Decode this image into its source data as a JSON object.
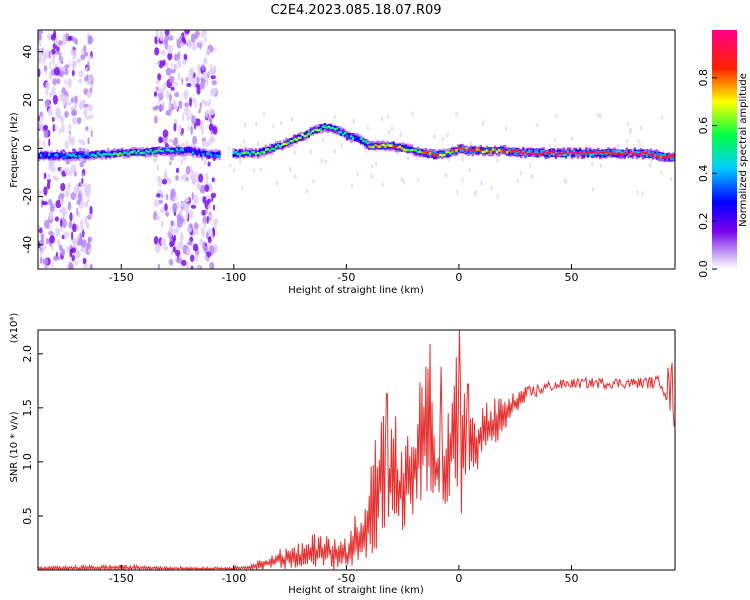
{
  "title": "C2E4.2023.085.18.07.R09",
  "colors": {
    "line": "#e53030",
    "background": "#ffffff",
    "spectrum_scale": [
      "#ffffff",
      "#7700ee",
      "#0000ff",
      "#00ccff",
      "#00ff44",
      "#ffff00",
      "#ff2200",
      "#ff0088"
    ]
  },
  "chart_data": [
    {
      "type": "heatmap",
      "panel": "top",
      "xlabel": "Height of straight line (km)",
      "ylabel": "Frequency (Hz)",
      "xlim": [
        -187,
        96
      ],
      "ylim": [
        -50,
        49
      ],
      "xticks": [
        -150,
        -100,
        -50,
        0,
        50
      ],
      "yticks": [
        -40,
        -20,
        0,
        20,
        40
      ],
      "colorbar": {
        "label": "Normalized spectral amplitude",
        "range": [
          0.0,
          1.0
        ],
        "ticks": [
          "0.0",
          "0.2",
          "0.4",
          "0.6",
          "0.8"
        ]
      },
      "ridge": {
        "height": [
          -187,
          -170,
          -150,
          -130,
          -120,
          -110,
          -100,
          -90,
          -80,
          -70,
          -60,
          -55,
          -50,
          -45,
          -40,
          -30,
          -20,
          -15,
          -10,
          -5,
          0,
          5,
          10,
          20,
          30,
          50,
          80,
          96
        ],
        "frequency": [
          -3,
          -3,
          -2,
          -1,
          -1,
          -3,
          -2,
          -2,
          1,
          5,
          9,
          8,
          5,
          4,
          1,
          1,
          -1,
          -2,
          -3,
          -2,
          0,
          -1,
          -1,
          -1,
          -2,
          -2,
          -2,
          -4
        ],
        "amplitude": [
          0.35,
          0.4,
          0.55,
          0.45,
          0.3,
          0.35,
          0.5,
          0.55,
          0.6,
          0.65,
          0.5,
          0.55,
          0.45,
          0.4,
          0.7,
          0.75,
          0.6,
          0.8,
          0.85,
          0.7,
          0.9,
          0.85,
          0.75,
          0.8,
          0.95,
          1.0,
          0.95,
          0.85
        ]
      },
      "noise_regions": [
        [
          -187,
          -163
        ],
        [
          -135,
          -108
        ]
      ]
    },
    {
      "type": "line",
      "panel": "bottom",
      "xlabel": "Height of straight line (km)",
      "ylabel": "SNR (10 * v/v)",
      "multiplier": "(x10⁴)",
      "xlim": [
        -187,
        96
      ],
      "ylim": [
        0,
        2.22
      ],
      "xticks": [
        -150,
        -100,
        -50,
        0,
        50
      ],
      "yticks": [
        0.5,
        1.0,
        1.5,
        2.0
      ],
      "ytick_labels": [
        "0.5",
        "1.0",
        "1.5",
        "2.0"
      ],
      "envelope": {
        "x": [
          -187,
          -150,
          -120,
          -100,
          -90,
          -80,
          -70,
          -60,
          -55,
          -50,
          -45,
          -40,
          -35,
          -30,
          -25,
          -20,
          -15,
          -10,
          -5,
          0,
          5,
          10,
          15,
          20,
          25,
          30,
          40,
          50,
          60,
          70,
          80,
          90,
          96
        ],
        "min": [
          0.0,
          0.0,
          0.0,
          0.0,
          0.0,
          0.0,
          0.0,
          0.0,
          0.0,
          0.0,
          0.05,
          0.1,
          0.2,
          0.3,
          0.35,
          0.4,
          0.5,
          0.5,
          0.6,
          0.4,
          0.8,
          1.0,
          1.1,
          1.25,
          1.45,
          1.55,
          1.65,
          1.68,
          1.68,
          1.68,
          1.68,
          1.68,
          1.25
        ],
        "max": [
          0.03,
          0.05,
          0.03,
          0.03,
          0.08,
          0.2,
          0.25,
          0.42,
          0.3,
          0.3,
          0.6,
          0.9,
          1.6,
          1.4,
          1.1,
          1.5,
          2.08,
          1.4,
          1.5,
          2.22,
          1.4,
          1.55,
          1.6,
          1.6,
          1.65,
          1.7,
          1.75,
          1.77,
          1.78,
          1.78,
          1.78,
          1.8,
          2.0
        ]
      },
      "peaks": [
        [
          -32,
          1.63
        ],
        [
          -28,
          1.42
        ],
        [
          -13,
          2.09
        ],
        [
          -8,
          1.88
        ],
        [
          -3,
          1.55
        ],
        [
          0,
          2.22
        ],
        [
          4,
          1.72
        ]
      ]
    }
  ]
}
